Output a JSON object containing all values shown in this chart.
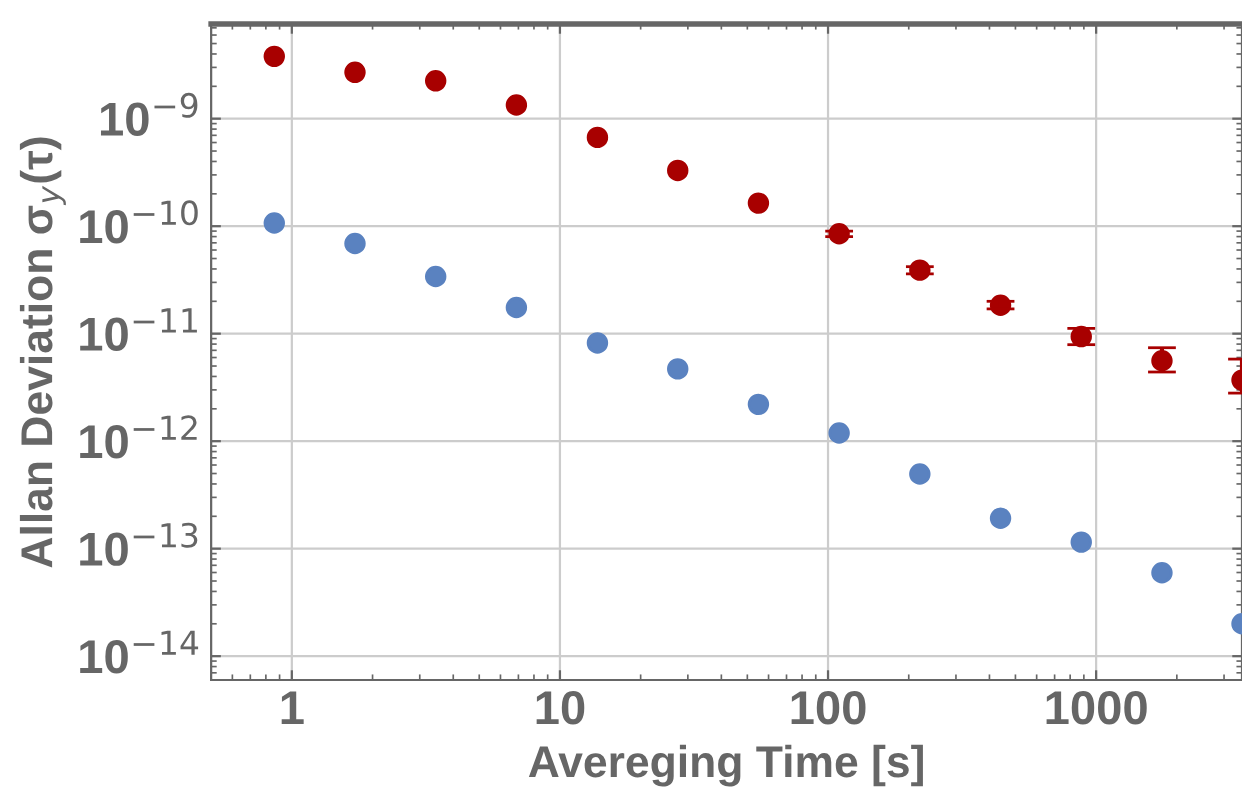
{
  "chart_data": {
    "type": "scatter",
    "xlabel": "Avereging Time [s]",
    "ylabel": "Allan Deviation σ$_{y}$(τ)",
    "log": "xy",
    "grid": true,
    "marker": "circle",
    "xlim": [
      0.5,
      3500
    ],
    "ylim": [
      6e-15,
      7.6e-09
    ],
    "xticks": [
      1,
      10,
      100,
      1000
    ],
    "yticks": [
      {
        "value": 1e-14,
        "label": "10$^{−14}$"
      },
      {
        "value": 1e-13,
        "label": "10$^{−13}$"
      },
      {
        "value": 1e-12,
        "label": "10$^{−12}$"
      },
      {
        "value": 1e-11,
        "label": "10$^{−11}$"
      },
      {
        "value": 1e-10,
        "label": "10$^{−10}$"
      },
      {
        "value": 1e-09,
        "label": "10$^{−9}$"
      }
    ],
    "x": [
      0.86,
      1.72,
      3.44,
      6.88,
      13.8,
      27.5,
      55,
      110,
      220,
      440,
      880,
      1760,
      3500
    ],
    "series": [
      {
        "color": "#a80000",
        "values": [
          3.8e-09,
          2.7e-09,
          2.25e-09,
          1.34e-09,
          6.7e-10,
          3.3e-10,
          1.64e-10,
          8.5e-11,
          3.9e-11,
          1.84e-11,
          9.4e-12,
          5.6e-12,
          3.7e-12
        ],
        "errors": [
          null,
          null,
          null,
          null,
          null,
          null,
          null,
          [
            8e-11,
            9e-11
          ],
          [
            3.6e-11,
            4.2e-11
          ],
          [
            1.7e-11,
            2e-11
          ],
          [
            7.9e-12,
            1.12e-11
          ],
          [
            4.4e-12,
            7.4e-12
          ],
          [
            2.8e-12,
            5.8e-12
          ]
        ]
      },
      {
        "color": "#5a82c0",
        "values": [
          1.07e-10,
          6.9e-11,
          3.4e-11,
          1.75e-11,
          8.2e-12,
          4.7e-12,
          2.2e-12,
          1.19e-12,
          4.95e-13,
          1.92e-13,
          1.15e-13,
          5.97e-14,
          2e-14
        ]
      }
    ]
  }
}
